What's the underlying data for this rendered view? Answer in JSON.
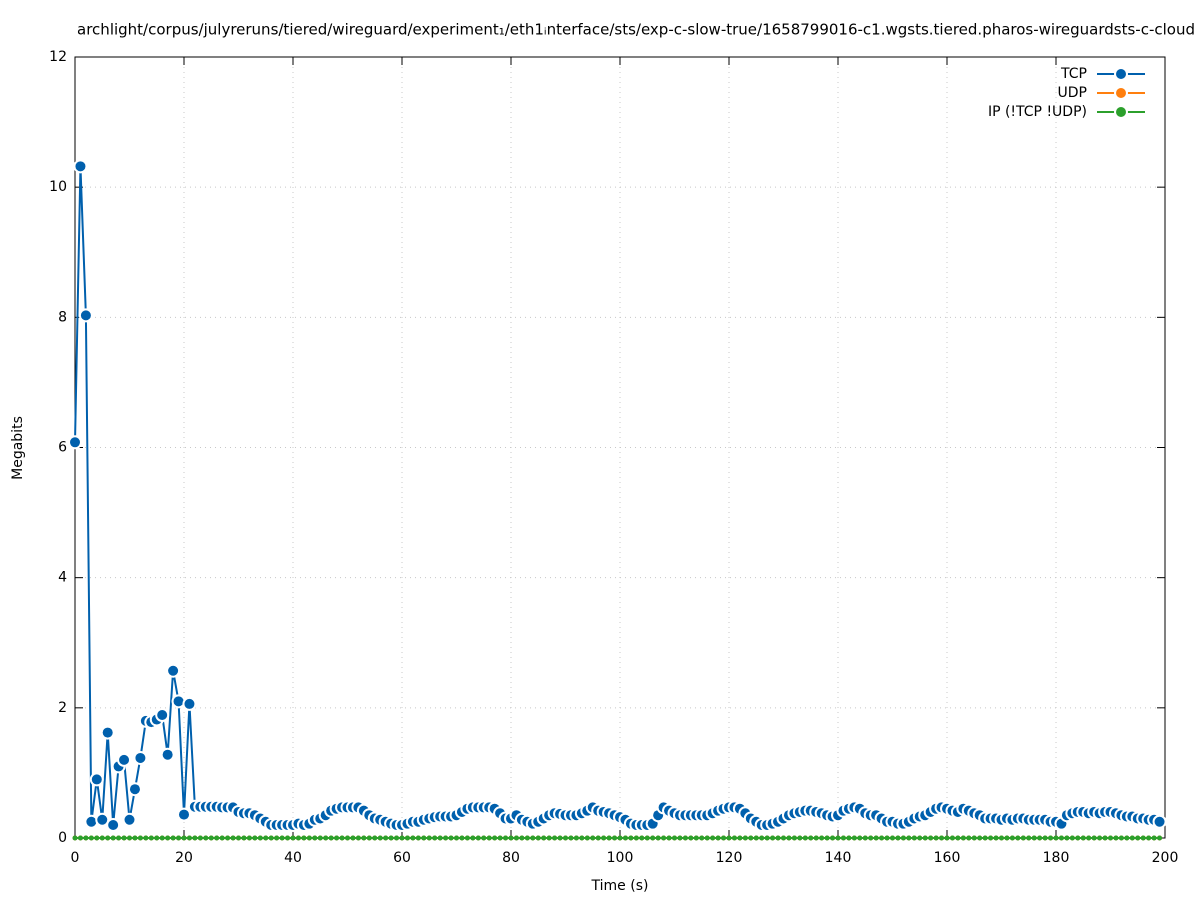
{
  "chart_data": {
    "type": "line",
    "title": "archlight/corpus/julyreruns/tiered/wireguard/experiment₁/eth1ᵢnterface/sts/exp-c-slow-true/1658799016-c1.wgsts.tiered.pharos-wireguardsts-c-cloud",
    "xlabel": "Time (s)",
    "ylabel": "Megabits",
    "xlim": [
      0,
      200
    ],
    "ylim": [
      0,
      12
    ],
    "xticks": [
      0,
      20,
      40,
      60,
      80,
      100,
      120,
      140,
      160,
      180,
      200
    ],
    "yticks": [
      0,
      2,
      4,
      6,
      8,
      10,
      12
    ],
    "grid": true,
    "legend": "top-right",
    "x": [
      0,
      1,
      2,
      3,
      4,
      5,
      6,
      7,
      8,
      9,
      10,
      11,
      12,
      13,
      14,
      15,
      16,
      17,
      18,
      19,
      20,
      21,
      22,
      23,
      24,
      25,
      26,
      27,
      28,
      29,
      30,
      31,
      32,
      33,
      34,
      35,
      36,
      37,
      38,
      39,
      40,
      41,
      42,
      43,
      44,
      45,
      46,
      47,
      48,
      49,
      50,
      51,
      52,
      53,
      54,
      55,
      56,
      57,
      58,
      59,
      60,
      61,
      62,
      63,
      64,
      65,
      66,
      67,
      68,
      69,
      70,
      71,
      72,
      73,
      74,
      75,
      76,
      77,
      78,
      79,
      80,
      81,
      82,
      83,
      84,
      85,
      86,
      87,
      88,
      89,
      90,
      91,
      92,
      93,
      94,
      95,
      96,
      97,
      98,
      99,
      100,
      101,
      102,
      103,
      104,
      105,
      106,
      107,
      108,
      109,
      110,
      111,
      112,
      113,
      114,
      115,
      116,
      117,
      118,
      119,
      120,
      121,
      122,
      123,
      124,
      125,
      126,
      127,
      128,
      129,
      130,
      131,
      132,
      133,
      134,
      135,
      136,
      137,
      138,
      139,
      140,
      141,
      142,
      143,
      144,
      145,
      146,
      147,
      148,
      149,
      150,
      151,
      152,
      153,
      154,
      155,
      156,
      157,
      158,
      159,
      160,
      161,
      162,
      163,
      164,
      165,
      166,
      167,
      168,
      169,
      170,
      171,
      172,
      173,
      174,
      175,
      176,
      177,
      178,
      179,
      180,
      181,
      182,
      183,
      184,
      185,
      186,
      187,
      188,
      189,
      190,
      191,
      192,
      193,
      194,
      195,
      196,
      197,
      198,
      199
    ],
    "series": [
      {
        "name": "TCP",
        "color": "#0060ad",
        "values": [
          6.08,
          10.32,
          8.03,
          0.25,
          0.9,
          0.28,
          1.62,
          0.2,
          1.1,
          1.2,
          0.28,
          0.75,
          1.23,
          1.8,
          1.78,
          1.82,
          1.89,
          1.28,
          2.57,
          2.1,
          0.36,
          2.06,
          0.48,
          0.48,
          0.48,
          0.48,
          0.48,
          0.47,
          0.47,
          0.47,
          0.4,
          0.38,
          0.38,
          0.35,
          0.3,
          0.25,
          0.2,
          0.2,
          0.2,
          0.2,
          0.2,
          0.22,
          0.2,
          0.22,
          0.28,
          0.3,
          0.35,
          0.42,
          0.45,
          0.47,
          0.47,
          0.47,
          0.47,
          0.42,
          0.35,
          0.3,
          0.28,
          0.25,
          0.22,
          0.2,
          0.2,
          0.22,
          0.25,
          0.25,
          0.28,
          0.3,
          0.32,
          0.33,
          0.33,
          0.33,
          0.35,
          0.4,
          0.45,
          0.47,
          0.47,
          0.47,
          0.47,
          0.45,
          0.38,
          0.3,
          0.3,
          0.35,
          0.28,
          0.25,
          0.22,
          0.25,
          0.3,
          0.35,
          0.38,
          0.37,
          0.35,
          0.35,
          0.35,
          0.38,
          0.42,
          0.47,
          0.42,
          0.4,
          0.38,
          0.35,
          0.32,
          0.28,
          0.22,
          0.2,
          0.2,
          0.2,
          0.22,
          0.35,
          0.47,
          0.42,
          0.38,
          0.35,
          0.35,
          0.35,
          0.35,
          0.35,
          0.35,
          0.38,
          0.42,
          0.45,
          0.47,
          0.47,
          0.45,
          0.38,
          0.3,
          0.25,
          0.2,
          0.2,
          0.22,
          0.25,
          0.3,
          0.35,
          0.38,
          0.4,
          0.42,
          0.42,
          0.4,
          0.38,
          0.35,
          0.33,
          0.35,
          0.42,
          0.45,
          0.47,
          0.45,
          0.38,
          0.35,
          0.35,
          0.3,
          0.25,
          0.25,
          0.22,
          0.22,
          0.25,
          0.3,
          0.33,
          0.35,
          0.4,
          0.45,
          0.47,
          0.45,
          0.42,
          0.4,
          0.45,
          0.42,
          0.38,
          0.35,
          0.3,
          0.3,
          0.3,
          0.28,
          0.3,
          0.28,
          0.3,
          0.3,
          0.28,
          0.28,
          0.28,
          0.28,
          0.25,
          0.25,
          0.22,
          0.35,
          0.38,
          0.4,
          0.4,
          0.38,
          0.4,
          0.38,
          0.4,
          0.4,
          0.38,
          0.35,
          0.33,
          0.33,
          0.3,
          0.3,
          0.28,
          0.28,
          0.25
        ]
      },
      {
        "name": "UDP",
        "color": "#ff7f0e",
        "values": [
          0,
          0,
          0,
          0,
          0,
          0,
          0,
          0,
          0,
          0,
          0,
          0,
          0,
          0,
          0,
          0,
          0,
          0,
          0,
          0,
          0,
          0,
          0,
          0,
          0,
          0,
          0,
          0,
          0,
          0,
          0,
          0,
          0,
          0,
          0,
          0,
          0,
          0,
          0,
          0,
          0,
          0,
          0,
          0,
          0,
          0,
          0,
          0,
          0,
          0,
          0,
          0,
          0,
          0,
          0,
          0,
          0,
          0,
          0,
          0,
          0,
          0,
          0,
          0,
          0,
          0,
          0,
          0,
          0,
          0,
          0,
          0,
          0,
          0,
          0,
          0,
          0,
          0,
          0,
          0,
          0,
          0,
          0,
          0,
          0,
          0,
          0,
          0,
          0,
          0,
          0,
          0,
          0,
          0,
          0,
          0,
          0,
          0,
          0,
          0,
          0,
          0,
          0,
          0,
          0,
          0,
          0,
          0,
          0,
          0,
          0,
          0,
          0,
          0,
          0,
          0,
          0,
          0,
          0,
          0,
          0,
          0,
          0,
          0,
          0,
          0,
          0,
          0,
          0,
          0,
          0,
          0,
          0,
          0,
          0,
          0,
          0,
          0,
          0,
          0,
          0,
          0,
          0,
          0,
          0,
          0,
          0,
          0,
          0,
          0,
          0,
          0,
          0,
          0,
          0,
          0,
          0,
          0,
          0,
          0,
          0,
          0,
          0,
          0,
          0,
          0,
          0,
          0,
          0,
          0,
          0,
          0,
          0,
          0,
          0,
          0,
          0,
          0,
          0,
          0,
          0,
          0,
          0,
          0,
          0,
          0,
          0,
          0,
          0,
          0,
          0,
          0,
          0,
          0,
          0,
          0,
          0,
          0,
          0,
          0
        ]
      },
      {
        "name": "IP (!TCP  !UDP)",
        "color": "#2ca02c",
        "values": [
          0,
          0,
          0,
          0,
          0,
          0,
          0,
          0,
          0,
          0,
          0,
          0,
          0,
          0,
          0,
          0,
          0,
          0,
          0,
          0,
          0,
          0,
          0,
          0,
          0,
          0,
          0,
          0,
          0,
          0,
          0,
          0,
          0,
          0,
          0,
          0,
          0,
          0,
          0,
          0,
          0,
          0,
          0,
          0,
          0,
          0,
          0,
          0,
          0,
          0,
          0,
          0,
          0,
          0,
          0,
          0,
          0,
          0,
          0,
          0,
          0,
          0,
          0,
          0,
          0,
          0,
          0,
          0,
          0,
          0,
          0,
          0,
          0,
          0,
          0,
          0,
          0,
          0,
          0,
          0,
          0,
          0,
          0,
          0,
          0,
          0,
          0,
          0,
          0,
          0,
          0,
          0,
          0,
          0,
          0,
          0,
          0,
          0,
          0,
          0,
          0,
          0,
          0,
          0,
          0,
          0,
          0,
          0,
          0,
          0,
          0,
          0,
          0,
          0,
          0,
          0,
          0,
          0,
          0,
          0,
          0,
          0,
          0,
          0,
          0,
          0,
          0,
          0,
          0,
          0,
          0,
          0,
          0,
          0,
          0,
          0,
          0,
          0,
          0,
          0,
          0,
          0,
          0,
          0,
          0,
          0,
          0,
          0,
          0,
          0,
          0,
          0,
          0,
          0,
          0,
          0,
          0,
          0,
          0,
          0,
          0,
          0,
          0,
          0,
          0,
          0,
          0,
          0,
          0,
          0,
          0,
          0,
          0,
          0,
          0,
          0,
          0,
          0,
          0,
          0,
          0,
          0,
          0,
          0,
          0,
          0,
          0,
          0,
          0,
          0,
          0,
          0,
          0,
          0,
          0,
          0,
          0,
          0,
          0,
          0
        ]
      }
    ]
  }
}
